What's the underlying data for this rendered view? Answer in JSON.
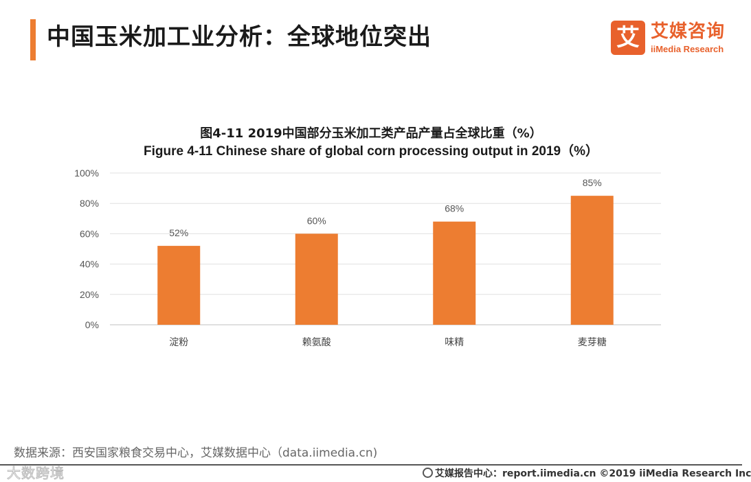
{
  "header": {
    "title": "中国玉米加工业分析：全球地位突出"
  },
  "logo": {
    "mark": "艾",
    "name_cn": "艾媒咨询",
    "name_en": "iiMedia Research"
  },
  "chart_data": {
    "type": "bar",
    "title": "图4-11 2019中国部分玉米加工类产品产量占全球比重（%）",
    "subtitle": "Figure 4-11 Chinese share of global corn processing output in 2019（%）",
    "categories": [
      "淀粉",
      "赖氨酸",
      "味精",
      "麦芽糖"
    ],
    "values": [
      52,
      60,
      68,
      85
    ],
    "value_labels": [
      "52%",
      "60%",
      "68%",
      "85%"
    ],
    "yticks": [
      "0%",
      "20%",
      "40%",
      "60%",
      "80%",
      "100%"
    ],
    "ylim": [
      0,
      100
    ],
    "xlabel": "",
    "ylabel": "",
    "grid": true,
    "bar_color": "#ed7d31"
  },
  "source": "数据来源：西安国家粮食交易中心，艾媒数据中心（data.iimedia.cn)",
  "watermark": "大数跨境",
  "footer": "艾媒报告中心：report.iimedia.cn  ©2019  iiMedia Research  Inc"
}
